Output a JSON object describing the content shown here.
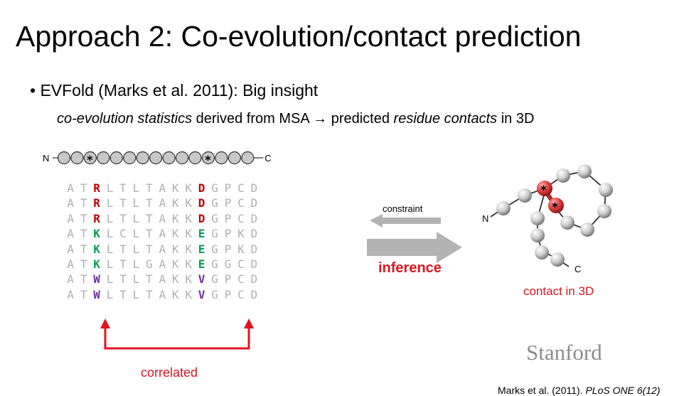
{
  "slide": {
    "title_main": "Approach 2:",
    "title_rest": " Co-evolution/contact prediction",
    "bullet_symbol": "•",
    "bullet_text": "EVFold (Marks et al. 2011): Big insight",
    "sub_part1": "co-evolution statistics",
    "sub_part2": " derived from MSA ",
    "sub_arrow": "→",
    "sub_part3": " predicted ",
    "sub_part4": "residue contacts",
    "sub_part5": " in 3D"
  },
  "chain": {
    "n_label": "N",
    "c_label": "C",
    "bead_count": 15,
    "star_positions": [
      2,
      11
    ],
    "star_glyph": "*"
  },
  "msa": {
    "rows": [
      "ATRLTLTAKKDGPCD",
      "ATRLTLTAKKDGPCD",
      "ATRLTLTAKKDGPCD",
      "ATKLCLTAKKEGPKD",
      "ATKLTLTAKKEGPKD",
      "ATKLTLGAKKEGGCD",
      "ATWLTLTAKKVGPCD",
      "ATWLTLTAKKVGPCD"
    ],
    "highlight_columns": [
      2,
      10
    ],
    "residue_colors": {
      "R": "#c00000",
      "D": "#c00000",
      "K": "#00a050",
      "E": "#00a050",
      "W": "#7030a0",
      "V": "#7030a0"
    }
  },
  "labels": {
    "constraint": "constraint",
    "inference": "inference",
    "contact_3d": "contact in 3D",
    "correlated": "correlated",
    "protein_n": "N",
    "protein_c": "C",
    "stanford": "Stanford",
    "citation_authors": "Marks et al. (2011). ",
    "citation_journal": "PLoS ONE 6(12)"
  },
  "colors": {
    "accent_red": "#e0141e",
    "arrow_gray": "#b3b3b3",
    "muted_gray": "#b0b0b0"
  }
}
